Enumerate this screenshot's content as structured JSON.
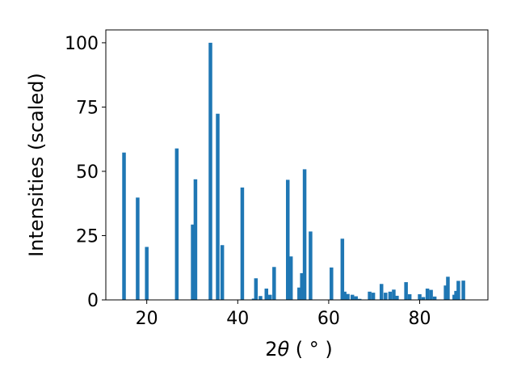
{
  "chart_data": {
    "type": "bar",
    "title": "",
    "xlabel_text": "2",
    "xlabel_theta": "θ",
    "xlabel_units": " ( ° )",
    "ylabel": "Intensities (scaled)",
    "xlim": [
      11,
      95
    ],
    "ylim": [
      0,
      105
    ],
    "xticks": [
      20,
      40,
      60,
      80
    ],
    "yticks": [
      0,
      25,
      50,
      75,
      100
    ],
    "grid": false,
    "bar_color": "#1f77b4",
    "bar_width": 0.8,
    "x": [
      15.0,
      18.0,
      20.0,
      26.6,
      30.1,
      30.7,
      34.0,
      35.6,
      36.6,
      41.0,
      43.5,
      44.0,
      45.0,
      46.3,
      47.1,
      48.0,
      51.0,
      51.7,
      53.5,
      54.1,
      54.7,
      56.0,
      60.6,
      63.0,
      63.5,
      64.2,
      65.2,
      66.0,
      66.8,
      69.0,
      69.8,
      71.6,
      72.5,
      73.5,
      74.3,
      75.0,
      77.0,
      77.8,
      80.0,
      80.8,
      81.7,
      82.5,
      83.3,
      85.7,
      86.2,
      87.6,
      88.0,
      88.5,
      89.6
    ],
    "values": [
      57.3,
      39.8,
      20.6,
      58.9,
      29.3,
      46.9,
      100,
      72.4,
      21.3,
      43.7,
      0.5,
      8.4,
      1.5,
      4.4,
      2.0,
      12.8,
      46.7,
      16.9,
      4.8,
      10.4,
      50.8,
      26.6,
      12.6,
      23.8,
      3.2,
      2.3,
      2.0,
      1.4,
      0.4,
      3.2,
      2.8,
      6.2,
      2.8,
      3.2,
      4.0,
      1.6,
      6.9,
      2.2,
      2.2,
      1.1,
      4.4,
      3.9,
      1.3,
      5.6,
      9.0,
      2.0,
      3.5,
      7.4,
      7.5
    ]
  }
}
